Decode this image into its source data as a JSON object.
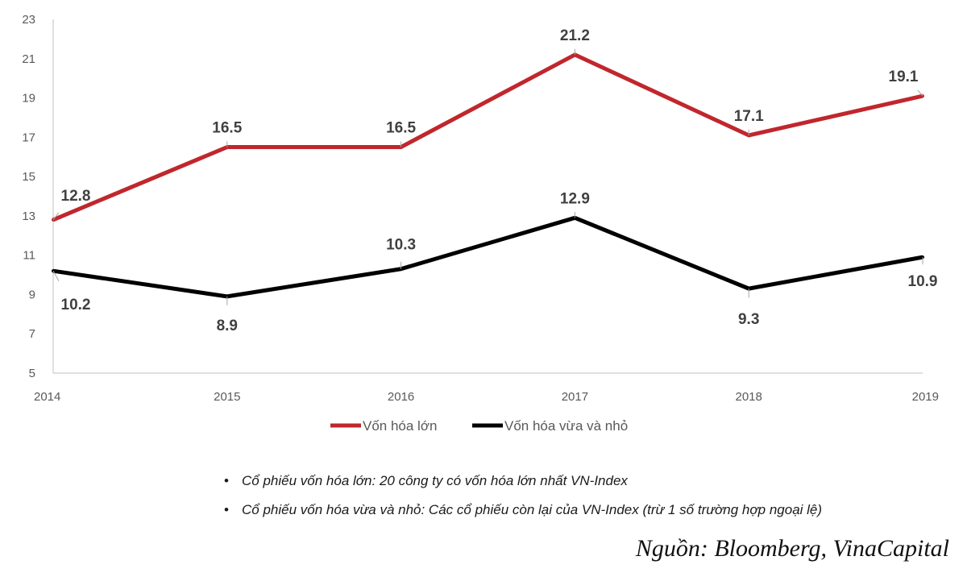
{
  "chart_data": {
    "type": "line",
    "categories": [
      "2014",
      "2015",
      "2016",
      "2017",
      "2018",
      "2019"
    ],
    "y_ticks": [
      "5",
      "7",
      "9",
      "11",
      "13",
      "15",
      "17",
      "19",
      "21",
      "23"
    ],
    "ylim": [
      5,
      23
    ],
    "grid": false,
    "legend_position": "bottom-center",
    "series": [
      {
        "name": "Vốn hóa lớn",
        "color": "#c0272d",
        "values": [
          12.8,
          16.5,
          16.5,
          21.2,
          17.1,
          19.1
        ],
        "labels": [
          "12.8",
          "16.5",
          "16.5",
          "21.2",
          "17.1",
          "19.1"
        ]
      },
      {
        "name": "Vốn hóa vừa và nhỏ",
        "color": "#000000",
        "values": [
          10.2,
          8.9,
          10.3,
          12.9,
          9.3,
          10.9
        ],
        "labels": [
          "10.2",
          "8.9",
          "10.3",
          "12.9",
          "9.3",
          "10.9"
        ]
      }
    ]
  },
  "notes": [
    "Cổ phiếu vốn hóa lớn: 20 công ty có vốn hóa lớn nhất VN-Index",
    "Cổ phiếu vốn hóa vừa và nhỏ: Các cổ phiếu còn lại của VN-Index (trừ 1 số trường hợp ngoại lệ)"
  ],
  "source": "Nguồn: Bloomberg, VinaCapital"
}
